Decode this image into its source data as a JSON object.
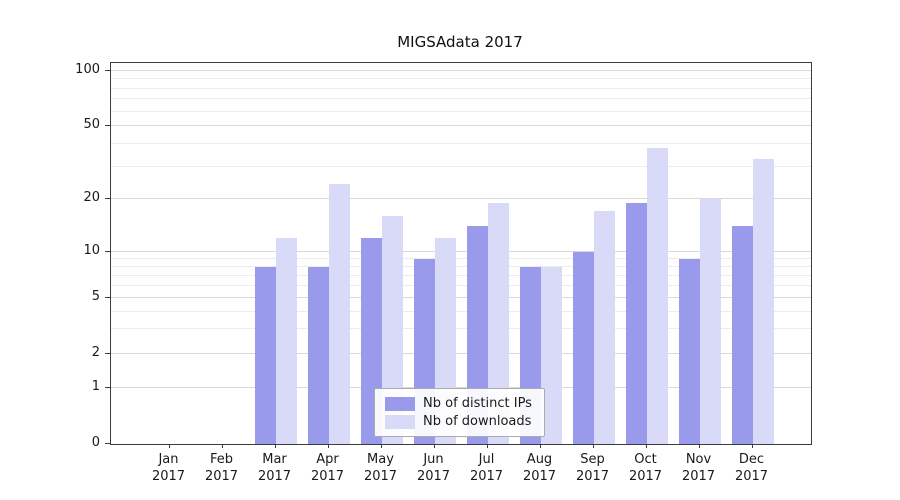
{
  "chart_data": {
    "type": "bar",
    "title": "MIGSAdata 2017",
    "categories": [
      [
        "Jan",
        "2017"
      ],
      [
        "Feb",
        "2017"
      ],
      [
        "Mar",
        "2017"
      ],
      [
        "Apr",
        "2017"
      ],
      [
        "May",
        "2017"
      ],
      [
        "Jun",
        "2017"
      ],
      [
        "Jul",
        "2017"
      ],
      [
        "Aug",
        "2017"
      ],
      [
        "Sep",
        "2017"
      ],
      [
        "Oct",
        "2017"
      ],
      [
        "Nov",
        "2017"
      ],
      [
        "Dec",
        "2017"
      ]
    ],
    "series": [
      {
        "name": "Nb of distinct IPs",
        "color": "#9a9aec",
        "values": [
          0,
          0,
          8,
          8,
          12,
          9,
          14,
          8,
          10,
          19,
          9,
          14
        ]
      },
      {
        "name": "Nb of downloads",
        "color": "#d9d9f8",
        "values": [
          0,
          0,
          12,
          24,
          16,
          12,
          19,
          8,
          17,
          38,
          20,
          33
        ]
      }
    ],
    "yscale": "log-like",
    "yticks": [
      0,
      1,
      2,
      5,
      10,
      20,
      50,
      100
    ],
    "minor_yticks": [
      3,
      4,
      6,
      7,
      8,
      9,
      30,
      40,
      60,
      70,
      80,
      90
    ],
    "ylim": [
      0,
      100
    ],
    "xlabel": "",
    "ylabel": "",
    "grid": "horizontal",
    "legend": {
      "position": "inside-bottom-center",
      "entries": [
        "Nb of distinct IPs",
        "Nb of downloads"
      ]
    }
  }
}
